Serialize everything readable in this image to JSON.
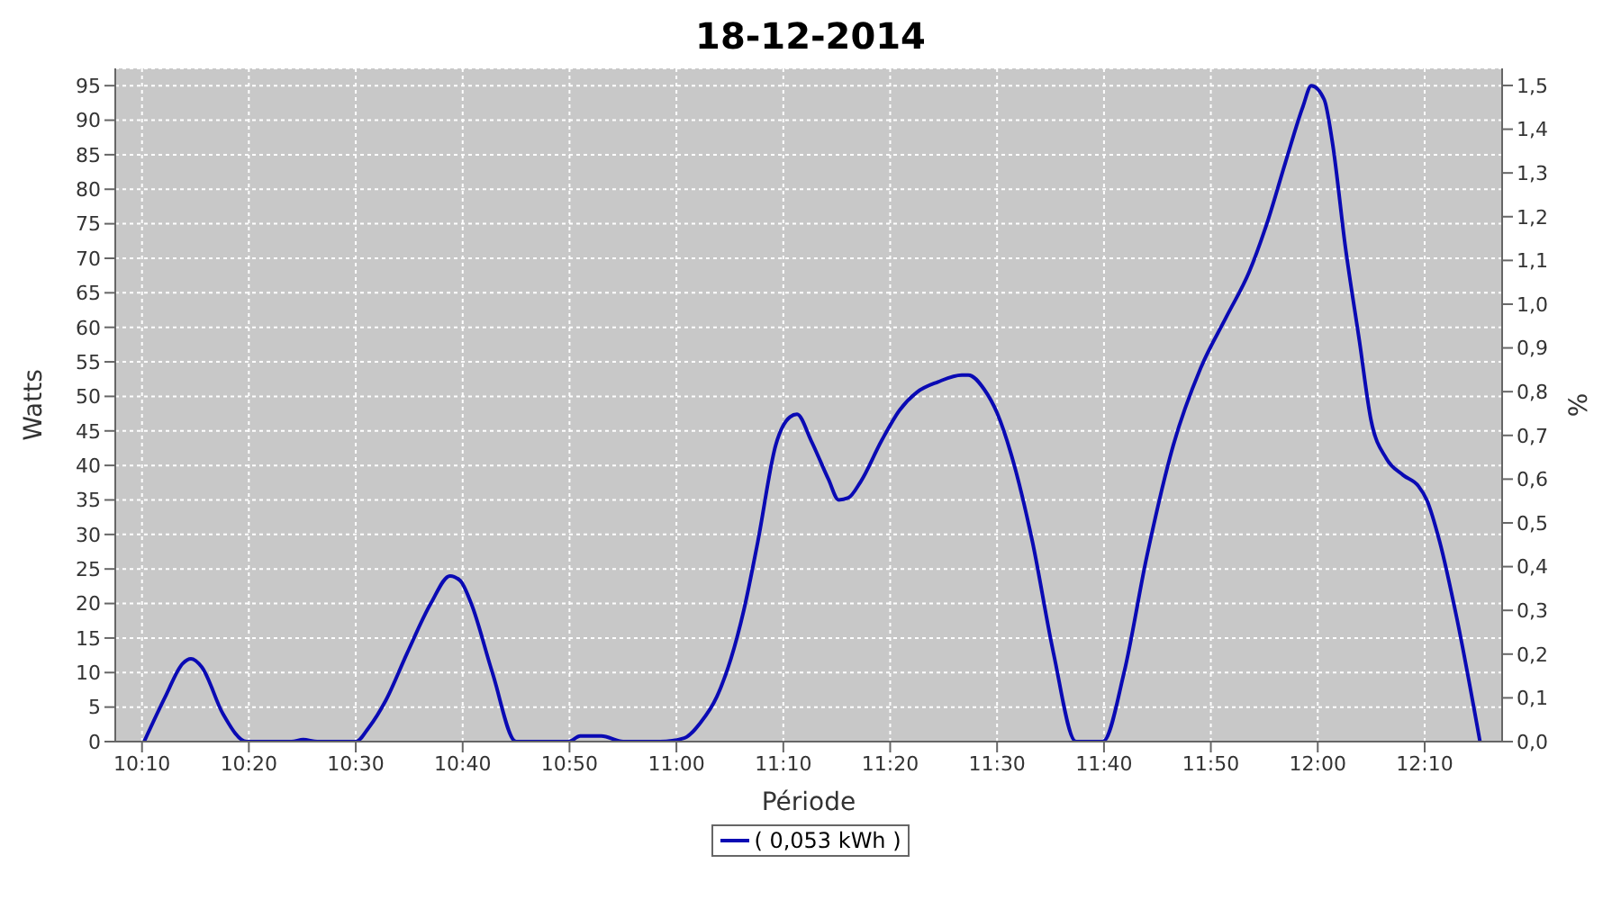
{
  "chart_data": {
    "type": "line",
    "title": "18-12-2014",
    "xlabel": "Période",
    "ylabel": "Watts",
    "y2label": "%",
    "x": [
      10.17,
      10.203,
      10.23,
      10.243,
      10.26,
      10.293,
      10.33,
      10.4,
      10.418,
      10.44,
      10.5,
      10.52,
      10.547,
      10.58,
      10.617,
      10.647,
      10.663,
      10.68,
      10.713,
      10.75,
      10.832,
      10.85,
      10.883,
      10.917,
      10.975,
      11.012,
      11.038,
      11.063,
      11.085,
      11.105,
      11.127,
      11.155,
      11.177,
      11.188,
      11.21,
      11.237,
      11.253,
      11.268,
      11.287,
      11.32,
      11.348,
      11.375,
      11.408,
      11.445,
      11.455,
      11.48,
      11.5,
      11.522,
      11.555,
      11.588,
      11.623,
      11.665,
      11.698,
      11.733,
      11.775,
      11.817,
      11.858,
      11.893,
      11.922,
      11.95,
      11.977,
      11.99,
      12.01,
      12.023,
      12.043,
      12.065,
      12.083,
      12.107,
      12.133,
      12.157,
      12.17,
      12.19,
      12.217,
      12.253
    ],
    "series": [
      {
        "name": "( 0,053 kWh )",
        "color": "#0a0ab4",
        "values": [
          0,
          6.5,
          11.3,
          12,
          10.8,
          4,
          0,
          0,
          0.3,
          0,
          0,
          2,
          6,
          12.8,
          20,
          24,
          23.3,
          20,
          10,
          0,
          0,
          0.8,
          0.8,
          0,
          0,
          0.5,
          2.8,
          6.5,
          12,
          19,
          29,
          43,
          47,
          47.4,
          43.6,
          38,
          35,
          35.3,
          37.6,
          43.6,
          48,
          50.6,
          52.1,
          53.1,
          53.1,
          51,
          47.6,
          41.6,
          29,
          12.8,
          0,
          0,
          10,
          26.6,
          43,
          54,
          61.6,
          68,
          75.4,
          84,
          92,
          95,
          93,
          86.7,
          71.7,
          58,
          46.6,
          41,
          38.6,
          37,
          35,
          29,
          17.8,
          0
        ]
      }
    ],
    "xlim": [
      10.125,
      12.2875
    ],
    "xticks": [
      {
        "value": 10.1667,
        "label": "10:10"
      },
      {
        "value": 10.3333,
        "label": "10:20"
      },
      {
        "value": 10.5,
        "label": "10:30"
      },
      {
        "value": 10.6667,
        "label": "10:40"
      },
      {
        "value": 10.8333,
        "label": "10:50"
      },
      {
        "value": 11,
        "label": "11:00"
      },
      {
        "value": 11.1667,
        "label": "11:10"
      },
      {
        "value": 11.3333,
        "label": "11:20"
      },
      {
        "value": 11.5,
        "label": "11:30"
      },
      {
        "value": 11.6667,
        "label": "11:40"
      },
      {
        "value": 11.8333,
        "label": "11:50"
      },
      {
        "value": 12,
        "label": "12:00"
      },
      {
        "value": 12.1667,
        "label": "12:10"
      }
    ],
    "ylim": [
      0,
      97.5
    ],
    "yticks": [
      0,
      5,
      10,
      15,
      20,
      25,
      30,
      35,
      40,
      45,
      50,
      55,
      60,
      65,
      70,
      75,
      80,
      85,
      90,
      95
    ],
    "y2lim": [
      0,
      1.539
    ],
    "y2ticks": [
      {
        "value": 0,
        "label": "0,0"
      },
      {
        "value": 0.1,
        "label": "0,1"
      },
      {
        "value": 0.2,
        "label": "0,2"
      },
      {
        "value": 0.3,
        "label": "0,3"
      },
      {
        "value": 0.4,
        "label": "0,4"
      },
      {
        "value": 0.5,
        "label": "0,5"
      },
      {
        "value": 0.6,
        "label": "0,6"
      },
      {
        "value": 0.7,
        "label": "0,7"
      },
      {
        "value": 0.8,
        "label": "0,8"
      },
      {
        "value": 0.9,
        "label": "0,9"
      },
      {
        "value": 1,
        "label": "1,0"
      },
      {
        "value": 1.1,
        "label": "1,1"
      },
      {
        "value": 1.2,
        "label": "1,2"
      },
      {
        "value": 1.3,
        "label": "1,3"
      },
      {
        "value": 1.4,
        "label": "1,4"
      },
      {
        "value": 1.5,
        "label": "1,5"
      }
    ],
    "grid": true,
    "legend": "bottom",
    "marker": "none"
  }
}
